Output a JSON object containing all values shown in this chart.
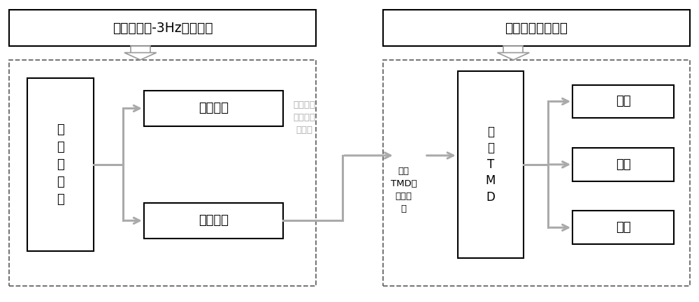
{
  "fig_width": 10.0,
  "fig_height": 4.33,
  "dpi": 100,
  "bg_color": "#ffffff",
  "box_edge_color": "#000000",
  "dashed_box_color": "#666666",
  "arrow_color": "#aaaaaa",
  "text_color": "#000000",
  "left_title": "抑制风雨振-3Hz以内模态",
  "right_title": "抑制高阶涡激振动",
  "left_main_box_label": "优\n化\n阻\n尼\n器",
  "left_box1_label": "阻尼系数",
  "left_box2_label": "安装位置",
  "middle_label1": "高阶涡振\n振型和模\n态确定",
  "middle_label2": "确定\nTMD的\n安装位\n置",
  "right_main_box_label": "优\n化\nT\nM\nD",
  "right_box1_label": "刚度",
  "right_box2_label": "阻尼",
  "right_box3_label": "质量",
  "arrow_gray": "#b0b0b0",
  "fat_arrow_color": "#999999"
}
